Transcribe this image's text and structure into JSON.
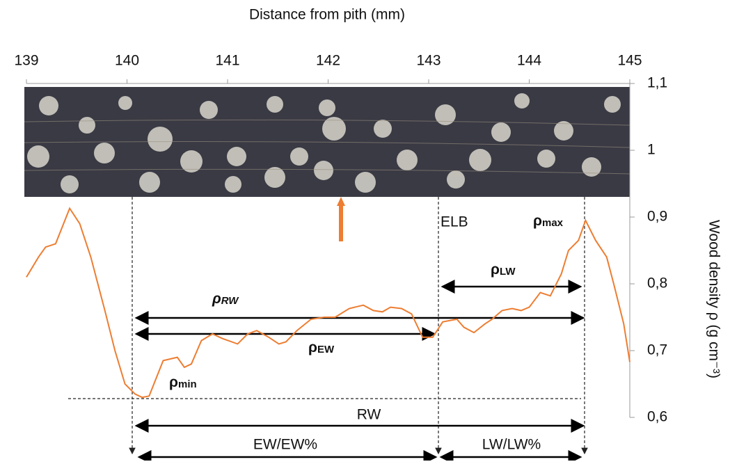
{
  "chart_data": {
    "type": "line",
    "xlabel": "Distance from pith (mm)",
    "ylabel": "Wood density ρ (g cm⁻³)",
    "xlim": [
      139,
      145
    ],
    "xticks": [
      139,
      140,
      141,
      142,
      143,
      144,
      145
    ],
    "ylim": [
      0.6,
      1.1
    ],
    "yticks": [
      {
        "value": 0.6,
        "label": "0,6"
      },
      {
        "value": 0.7,
        "label": "0,7"
      },
      {
        "value": 0.8,
        "label": "0,8"
      },
      {
        "value": 0.9,
        "label": "0,9"
      },
      1,
      {
        "value": 1.1,
        "label": "1,1"
      }
    ],
    "series": [
      {
        "color": "#ED7D31",
        "x": [
          139.0,
          139.12,
          139.19,
          139.29,
          139.43,
          139.53,
          139.64,
          139.78,
          139.88,
          139.98,
          140.08,
          140.15,
          140.22,
          140.36,
          140.5,
          140.57,
          140.64,
          140.74,
          140.85,
          140.95,
          141.1,
          141.2,
          141.29,
          141.41,
          141.51,
          141.58,
          141.69,
          141.83,
          141.96,
          142.07,
          142.21,
          142.35,
          142.45,
          142.54,
          142.62,
          142.73,
          142.83,
          142.94,
          143.04,
          143.14,
          143.28,
          143.35,
          143.45,
          143.56,
          143.63,
          143.73,
          143.83,
          143.92,
          144.0,
          144.11,
          144.21,
          144.32,
          144.39,
          144.49,
          144.56,
          144.66,
          144.77,
          144.84,
          144.94,
          145.0
        ],
        "values": [
          0.81,
          0.84,
          0.855,
          0.86,
          0.913,
          0.89,
          0.84,
          0.76,
          0.7,
          0.65,
          0.635,
          0.63,
          0.632,
          0.685,
          0.69,
          0.675,
          0.68,
          0.715,
          0.725,
          0.718,
          0.71,
          0.725,
          0.73,
          0.72,
          0.71,
          0.713,
          0.73,
          0.747,
          0.75,
          0.75,
          0.763,
          0.768,
          0.76,
          0.758,
          0.765,
          0.763,
          0.755,
          0.72,
          0.72,
          0.743,
          0.747,
          0.735,
          0.727,
          0.74,
          0.747,
          0.76,
          0.763,
          0.76,
          0.765,
          0.787,
          0.782,
          0.815,
          0.85,
          0.865,
          0.895,
          0.865,
          0.84,
          0.8,
          0.74,
          0.683
        ]
      }
    ],
    "annotations": [
      {
        "text": "ELB"
      },
      {
        "text": "ρ",
        "sub": "max"
      },
      {
        "text": "ρ",
        "sub": "LW"
      },
      {
        "text": "ρ",
        "sub": "RW"
      },
      {
        "text": "ρ",
        "sub": "EW"
      },
      {
        "text": "ρ",
        "sub": "min"
      },
      {
        "text": "RW"
      },
      {
        "text": "EW/EW%"
      },
      {
        "text": "LW/LW%"
      }
    ]
  }
}
